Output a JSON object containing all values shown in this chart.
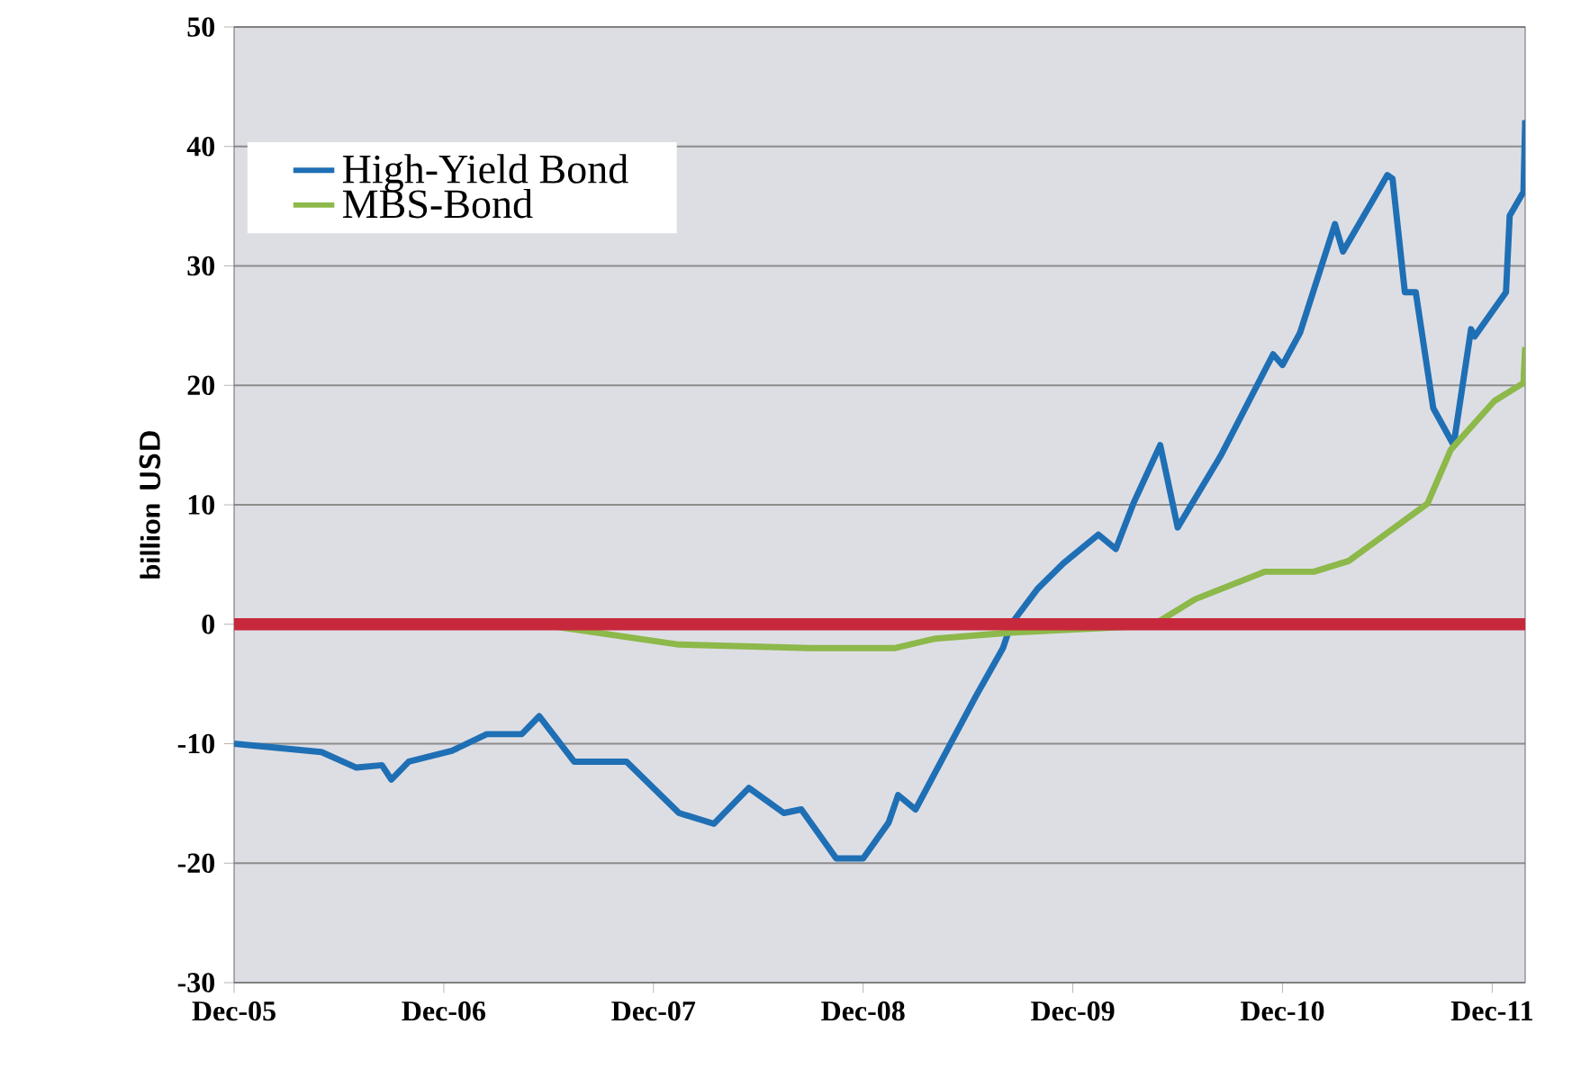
{
  "chart_data": {
    "type": "line",
    "ylabel": "billion USD",
    "ylim": [
      -30,
      50
    ],
    "yticks": [
      -30,
      -20,
      -10,
      0,
      10,
      20,
      30,
      40,
      50
    ],
    "xlim": [
      "2005-12-01",
      "2012-01-28"
    ],
    "xticks": [
      {
        "value": "2005-12-01",
        "label": "Dec-05"
      },
      {
        "value": "2006-12-01",
        "label": "Dec-06"
      },
      {
        "value": "2007-12-01",
        "label": "Dec-07"
      },
      {
        "value": "2008-12-01",
        "label": "Dec-08"
      },
      {
        "value": "2009-12-01",
        "label": "Dec-09"
      },
      {
        "value": "2010-12-01",
        "label": "Dec-10"
      },
      {
        "value": "2011-12-01",
        "label": "Dec-11"
      }
    ],
    "grid": "y",
    "legend": "top left",
    "marker": "none",
    "line_style": "solid",
    "ref_lines": [
      {
        "axis": "y",
        "value": 0,
        "color": "#c8283c"
      }
    ],
    "series": [
      {
        "name": "High-Yield Bond",
        "color": "#1f6fb5",
        "x": [
          "2005-12-01",
          "2006-05-01",
          "2006-07-01",
          "2006-08-15",
          "2006-09-01",
          "2006-10-01",
          "2006-12-15",
          "2007-02-15",
          "2007-04-15",
          "2007-05-15",
          "2007-07-15",
          "2007-10-15",
          "2008-01-15",
          "2008-03-15",
          "2008-05-15",
          "2008-07-15",
          "2008-08-15",
          "2008-10-15",
          "2008-12-01",
          "2009-01-15",
          "2009-02-01",
          "2009-03-01",
          "2009-05-01",
          "2009-06-15",
          "2009-08-01",
          "2009-08-15",
          "2009-10-01",
          "2009-11-15",
          "2010-01-15",
          "2010-02-15",
          "2010-03-15",
          "2010-05-01",
          "2010-06-01",
          "2010-08-15",
          "2010-11-15",
          "2010-12-01",
          "2011-01-01",
          "2011-03-01",
          "2011-03-15",
          "2011-06-01",
          "2011-06-10",
          "2011-07-01",
          "2011-07-20",
          "2011-08-20",
          "2011-09-25",
          "2011-10-25",
          "2011-11-01",
          "2011-12-25",
          "2012-01-01",
          "2012-01-25",
          "2012-01-28"
        ],
        "values": [
          -10,
          -10.7,
          -12,
          -11.8,
          -13,
          -11.5,
          -10.6,
          -9.2,
          -9.2,
          -7.7,
          -11.5,
          -11.5,
          -15.8,
          -16.7,
          -13.7,
          -15.8,
          -15.5,
          -19.6,
          -19.6,
          -16.6,
          -14.3,
          -15.5,
          -10,
          -6,
          -2,
          0,
          3,
          5.1,
          7.5,
          6.3,
          10.1,
          15,
          8.1,
          14.1,
          22.6,
          21.7,
          24.4,
          33.5,
          31.2,
          37.6,
          37.3,
          27.8,
          27.8,
          18.1,
          15,
          24.7,
          24.1,
          27.8,
          34.2,
          36.2,
          42.2
        ]
      },
      {
        "name": "MBS-Bond",
        "color": "#8db84a",
        "x": [
          "2007-05-15",
          "2008-01-15",
          "2008-09-01",
          "2009-01-25",
          "2009-04-05",
          "2009-08-15",
          "2010-03-15",
          "2010-05-01",
          "2010-07-01",
          "2010-11-01",
          "2011-01-25",
          "2011-03-25",
          "2011-08-10",
          "2011-09-20",
          "2011-12-05",
          "2012-01-25",
          "2012-01-28"
        ],
        "values": [
          0,
          -1.7,
          -2,
          -2,
          -1.2,
          -0.7,
          -0.2,
          0.3,
          2.1,
          4.4,
          4.4,
          5.3,
          10.1,
          14.6,
          18.7,
          20.2,
          23.2
        ]
      }
    ]
  }
}
